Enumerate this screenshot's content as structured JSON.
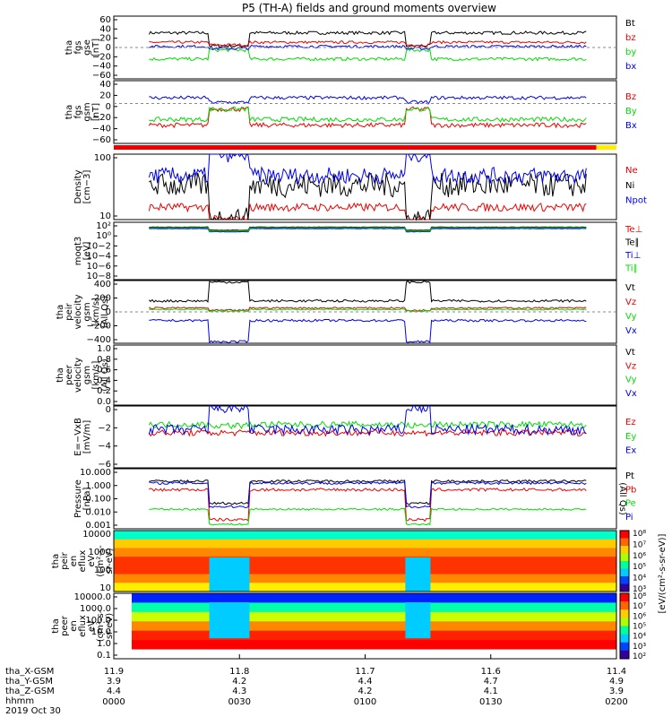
{
  "title": "P5 (TH-A) fields and ground moments overview",
  "footer_date": "2019 Oct 30",
  "time_axis": {
    "ticks": [
      "0000",
      "0030",
      "0100",
      "0130",
      "0200"
    ],
    "rows": [
      {
        "label": "tha_X-GSM",
        "values": [
          "11.9",
          "11.8",
          "11.7",
          "11.6",
          "11.4"
        ]
      },
      {
        "label": "tha_Y-GSM",
        "values": [
          "3.9",
          "4.2",
          "4.4",
          "4.7",
          "4.9"
        ]
      },
      {
        "label": "tha_Z-GSM",
        "values": [
          "4.4",
          "4.3",
          "4.2",
          "4.1",
          "3.9"
        ]
      },
      {
        "label": "hhmm",
        "values": []
      }
    ]
  },
  "colors": {
    "black": "#000000",
    "red": "#ee0000",
    "green": "#00dd00",
    "blue": "#0000ee",
    "yellow": "#ffee00"
  },
  "chart_data": [
    {
      "type": "line",
      "ylabel": [
        "tha",
        "fgs",
        "gse",
        "[nT]"
      ],
      "ylim": [
        -60,
        60
      ],
      "yticks": [
        "60",
        "40",
        "20",
        "0",
        "−20",
        "−40",
        "−60"
      ],
      "series": [
        {
          "name": "Bt",
          "color": "black",
          "base": 28,
          "dip": 3,
          "noise": 3
        },
        {
          "name": "bz",
          "color": "red",
          "base": 10,
          "dip": 5,
          "noise": 2.5
        },
        {
          "name": "by",
          "color": "green",
          "base": -22,
          "dip": -5,
          "noise": 3
        },
        {
          "name": "bx",
          "color": "blue",
          "base": 2,
          "dip": -2,
          "noise": 2.5
        }
      ]
    },
    {
      "type": "line",
      "ylabel": [
        "tha",
        "fgs",
        "gsm",
        "[nT]"
      ],
      "ylim": [
        -70,
        40
      ],
      "yticks": [
        "40",
        "20",
        "0",
        "−20",
        "−40",
        "−60"
      ],
      "series": [
        {
          "name": "Bz",
          "color": "red",
          "base": -38,
          "dip": -10,
          "noise": 4
        },
        {
          "name": "By",
          "color": "green",
          "base": -28,
          "dip": -10,
          "noise": 4
        },
        {
          "name": "Bx",
          "color": "blue",
          "base": 10,
          "dip": 2,
          "noise": 3
        }
      ]
    },
    {
      "type": "line",
      "ylabel": [
        "Density",
        "[cm−3]"
      ],
      "log": true,
      "ylim": [
        5,
        200
      ],
      "yticks": [
        "100",
        "10"
      ],
      "series": [
        {
          "name": "Ne",
          "color": "red",
          "base": 10,
          "dip": 5,
          "noise": 0.05
        },
        {
          "name": "Ni",
          "color": "black",
          "base": 35,
          "dip": 5,
          "noise": 0.15
        },
        {
          "name": "Npot",
          "color": "blue",
          "base": 60,
          "dip": 200,
          "noise": 0.1
        }
      ]
    },
    {
      "type": "line",
      "ylabel": [
        "moqt3",
        "[eV]"
      ],
      "log": true,
      "ylim": [
        1e-09,
        100
      ],
      "yticks": [
        "10²",
        "10⁰",
        "10−2",
        "10−4",
        "10−6",
        "10−8"
      ],
      "series": [
        {
          "name": "Te⊥",
          "color": "red",
          "base": 8,
          "dip": 2,
          "noise": 0.02
        },
        {
          "name": "Te∥",
          "color": "black",
          "base": 12,
          "dip": 3,
          "noise": 0.02
        },
        {
          "name": "Ti⊥",
          "color": "blue",
          "base": 6,
          "dip": 1.5,
          "noise": 0.02
        },
        {
          "name": "Ti∥",
          "color": "green",
          "base": 9,
          "dip": 2,
          "noise": 0.02
        }
      ]
    },
    {
      "type": "line",
      "ylabel": [
        "tha",
        "peir",
        "velocity",
        "gsm",
        "[km/s]",
        "(All Qs)"
      ],
      "ylim": [
        -400,
        400
      ],
      "yticks": [
        "400",
        "200",
        "0",
        "−200",
        "−400"
      ],
      "series": [
        {
          "name": "Vt",
          "color": "black",
          "base": 140,
          "dip": 380,
          "noise": 15
        },
        {
          "name": "Vz",
          "color": "red",
          "base": 50,
          "dip": 20,
          "noise": 10
        },
        {
          "name": "Vy",
          "color": "green",
          "base": 30,
          "dip": 10,
          "noise": 8
        },
        {
          "name": "Vx",
          "color": "blue",
          "base": -110,
          "dip": -380,
          "noise": 15
        }
      ]
    },
    {
      "type": "line",
      "ylabel": [
        "tha",
        "peer",
        "velocity",
        "gsm",
        "[km/s]",
        "(All Qs)"
      ],
      "ylim": [
        0,
        1
      ],
      "yticks": [
        "1.0",
        "0.8",
        "0.6",
        "0.4",
        "0.2",
        "0.0"
      ],
      "series": [
        {
          "name": "Vt",
          "color": "black"
        },
        {
          "name": "Vz",
          "color": "red"
        },
        {
          "name": "Vy",
          "color": "green"
        },
        {
          "name": "Vx",
          "color": "blue"
        }
      ]
    },
    {
      "type": "line",
      "ylabel": [
        "E=−VxB",
        "[mV/m]"
      ],
      "ylim": [
        -6,
        0
      ],
      "yticks": [
        "0",
        "−2",
        "−4",
        "−6"
      ],
      "series": [
        {
          "name": "Ez",
          "color": "red",
          "base": -2.6,
          "dip": -2.6,
          "noise": 0.3
        },
        {
          "name": "Ey",
          "color": "green",
          "base": -1.8,
          "dip": -1.9,
          "noise": 0.3
        },
        {
          "name": "Ex",
          "color": "blue",
          "base": -2.3,
          "dip": -0.2,
          "noise": 0.5
        }
      ]
    },
    {
      "type": "line",
      "ylabel": [
        "Pressure",
        "[nPa]"
      ],
      "log": true,
      "ylim": [
        0.001,
        10
      ],
      "yticks": [
        "10.000",
        "1.000",
        "0.100",
        "0.010",
        "0.001"
      ],
      "extra_label": "(All Qs)",
      "series": [
        {
          "name": "Pt",
          "color": "black",
          "base": 1.5,
          "dip": 0.05,
          "noise": 0.04
        },
        {
          "name": "Pb",
          "color": "red",
          "base": 0.4,
          "dip": 0.004,
          "noise": 0.05
        },
        {
          "name": "Pe",
          "color": "green",
          "base": 0.02,
          "dip": 0.002,
          "noise": 0.03
        },
        {
          "name": "Pi",
          "color": "blue",
          "base": 1.1,
          "dip": 0.03,
          "noise": 0.04
        }
      ]
    },
    {
      "type": "heatmap",
      "ylabel": [
        "tha",
        "peir",
        "en",
        "eflux",
        "eV",
        "(cm²-s-",
        "sr-eV)"
      ],
      "log": true,
      "ylim": [
        10,
        10000
      ],
      "yticks": [
        "10000",
        "1000",
        "100",
        "10"
      ]
    },
    {
      "type": "heatmap",
      "ylabel": [
        "tha",
        "peer",
        "en",
        "eflux",
        "eV",
        "(cm²-s-",
        "sr-eV)"
      ],
      "log": true,
      "ylim": [
        0.1,
        10000
      ],
      "yticks": [
        "10000.0",
        "1000.0",
        "100.0",
        "10.0",
        "1.0",
        "0.1"
      ]
    }
  ],
  "colorbar": {
    "label": "[eV/(cm²-s-sr-eV)]",
    "ticks_top": [
      "10⁸",
      "10⁷",
      "10⁶",
      "10⁵",
      "10⁴",
      "10³"
    ],
    "ticks_bottom": [
      "10⁸",
      "10⁷",
      "10⁶",
      "10⁵",
      "10⁴",
      "10³",
      "10²"
    ]
  }
}
